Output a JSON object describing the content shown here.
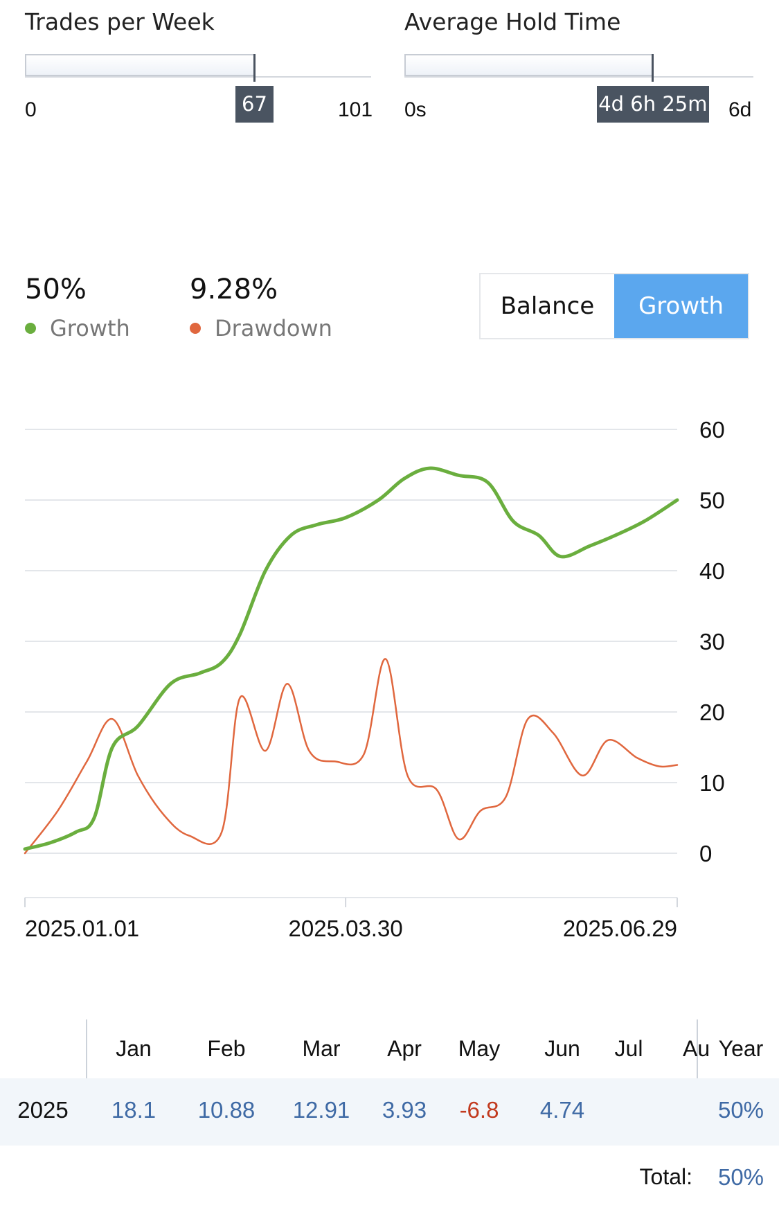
{
  "sliders": [
    {
      "title": "Trades per Week",
      "min_label": "0",
      "max_label": "101",
      "badge": "67",
      "fraction": 0.663
    },
    {
      "title": "Average Hold Time",
      "min_label": "0s",
      "max_label": "6d",
      "badge": "4d 6h 25m",
      "fraction": 0.712
    }
  ],
  "stats": {
    "growth": {
      "value": "50%",
      "label": "Growth",
      "color": "#6aae3e"
    },
    "drawdown": {
      "value": "9.28%",
      "label": "Drawdown",
      "color": "#e0673e"
    }
  },
  "toggle": {
    "balance": "Balance",
    "growth": "Growth",
    "active": "growth",
    "active_color": "#5ba7ee"
  },
  "chart_data": {
    "type": "line",
    "y_ticks": [
      "60",
      "50",
      "40",
      "30",
      "20",
      "10",
      "0"
    ],
    "ylim": [
      0,
      60
    ],
    "x_tick_labels": [
      "2025.01.01",
      "2025.03.30",
      "2025.06.29"
    ],
    "xlim": [
      "2025-01-01",
      "2025-06-29"
    ],
    "grid": true,
    "series": [
      {
        "name": "Growth",
        "color": "#6aae3e",
        "points": [
          [
            "2025-01-01",
            0.6
          ],
          [
            "2025-01-08",
            1.5
          ],
          [
            "2025-01-15",
            3.0
          ],
          [
            "2025-01-20",
            5.0
          ],
          [
            "2025-01-25",
            15.0
          ],
          [
            "2025-02-01",
            18.0
          ],
          [
            "2025-02-10",
            24.0
          ],
          [
            "2025-02-18",
            25.5
          ],
          [
            "2025-02-24",
            27.0
          ],
          [
            "2025-03-01",
            31.0
          ],
          [
            "2025-03-08",
            40.0
          ],
          [
            "2025-03-15",
            45.0
          ],
          [
            "2025-03-22",
            46.5
          ],
          [
            "2025-03-30",
            47.5
          ],
          [
            "2025-04-08",
            50.0
          ],
          [
            "2025-04-15",
            53.0
          ],
          [
            "2025-04-22",
            54.5
          ],
          [
            "2025-04-30",
            53.5
          ],
          [
            "2025-05-08",
            52.5
          ],
          [
            "2025-05-15",
            47.0
          ],
          [
            "2025-05-22",
            45.0
          ],
          [
            "2025-05-28",
            42.0
          ],
          [
            "2025-06-05",
            43.5
          ],
          [
            "2025-06-12",
            45.0
          ],
          [
            "2025-06-20",
            47.0
          ],
          [
            "2025-06-29",
            50.0
          ]
        ]
      },
      {
        "name": "Drawdown",
        "color": "#e0673e",
        "points": [
          [
            "2025-01-01",
            0.0
          ],
          [
            "2025-01-10",
            6.0
          ],
          [
            "2025-01-18",
            13.0
          ],
          [
            "2025-01-25",
            19.0
          ],
          [
            "2025-02-01",
            11.0
          ],
          [
            "2025-02-08",
            5.5
          ],
          [
            "2025-02-15",
            2.5
          ],
          [
            "2025-02-24",
            3.0
          ],
          [
            "2025-03-01",
            22.0
          ],
          [
            "2025-03-08",
            14.5
          ],
          [
            "2025-03-14",
            24.0
          ],
          [
            "2025-03-20",
            14.5
          ],
          [
            "2025-03-27",
            13.0
          ],
          [
            "2025-04-04",
            14.0
          ],
          [
            "2025-04-10",
            27.5
          ],
          [
            "2025-04-16",
            11.0
          ],
          [
            "2025-04-24",
            9.0
          ],
          [
            "2025-04-30",
            2.0
          ],
          [
            "2025-05-06",
            6.0
          ],
          [
            "2025-05-13",
            8.0
          ],
          [
            "2025-05-19",
            19.0
          ],
          [
            "2025-05-26",
            17.0
          ],
          [
            "2025-06-03",
            11.0
          ],
          [
            "2025-06-10",
            16.0
          ],
          [
            "2025-06-18",
            13.5
          ],
          [
            "2025-06-24",
            12.3
          ],
          [
            "2025-06-29",
            12.5
          ]
        ]
      }
    ]
  },
  "table": {
    "months": [
      "Jan",
      "Feb",
      "Mar",
      "Apr",
      "May",
      "Jun",
      "Jul",
      "Au"
    ],
    "year_header": "Year",
    "row_label": "2025",
    "values": [
      {
        "text": "18.1",
        "tone": "pos"
      },
      {
        "text": "10.88",
        "tone": "pos"
      },
      {
        "text": "12.91",
        "tone": "pos"
      },
      {
        "text": "3.93",
        "tone": "pos"
      },
      {
        "text": "-6.8",
        "tone": "neg"
      },
      {
        "text": "4.74",
        "tone": "pos"
      },
      {
        "text": "",
        "tone": "pos"
      },
      {
        "text": "",
        "tone": "pos"
      }
    ],
    "year_value": "50%",
    "total_label": "Total:",
    "total_value": "50%",
    "pos_color": "#3f6aa5",
    "neg_color": "#c23a1e"
  }
}
